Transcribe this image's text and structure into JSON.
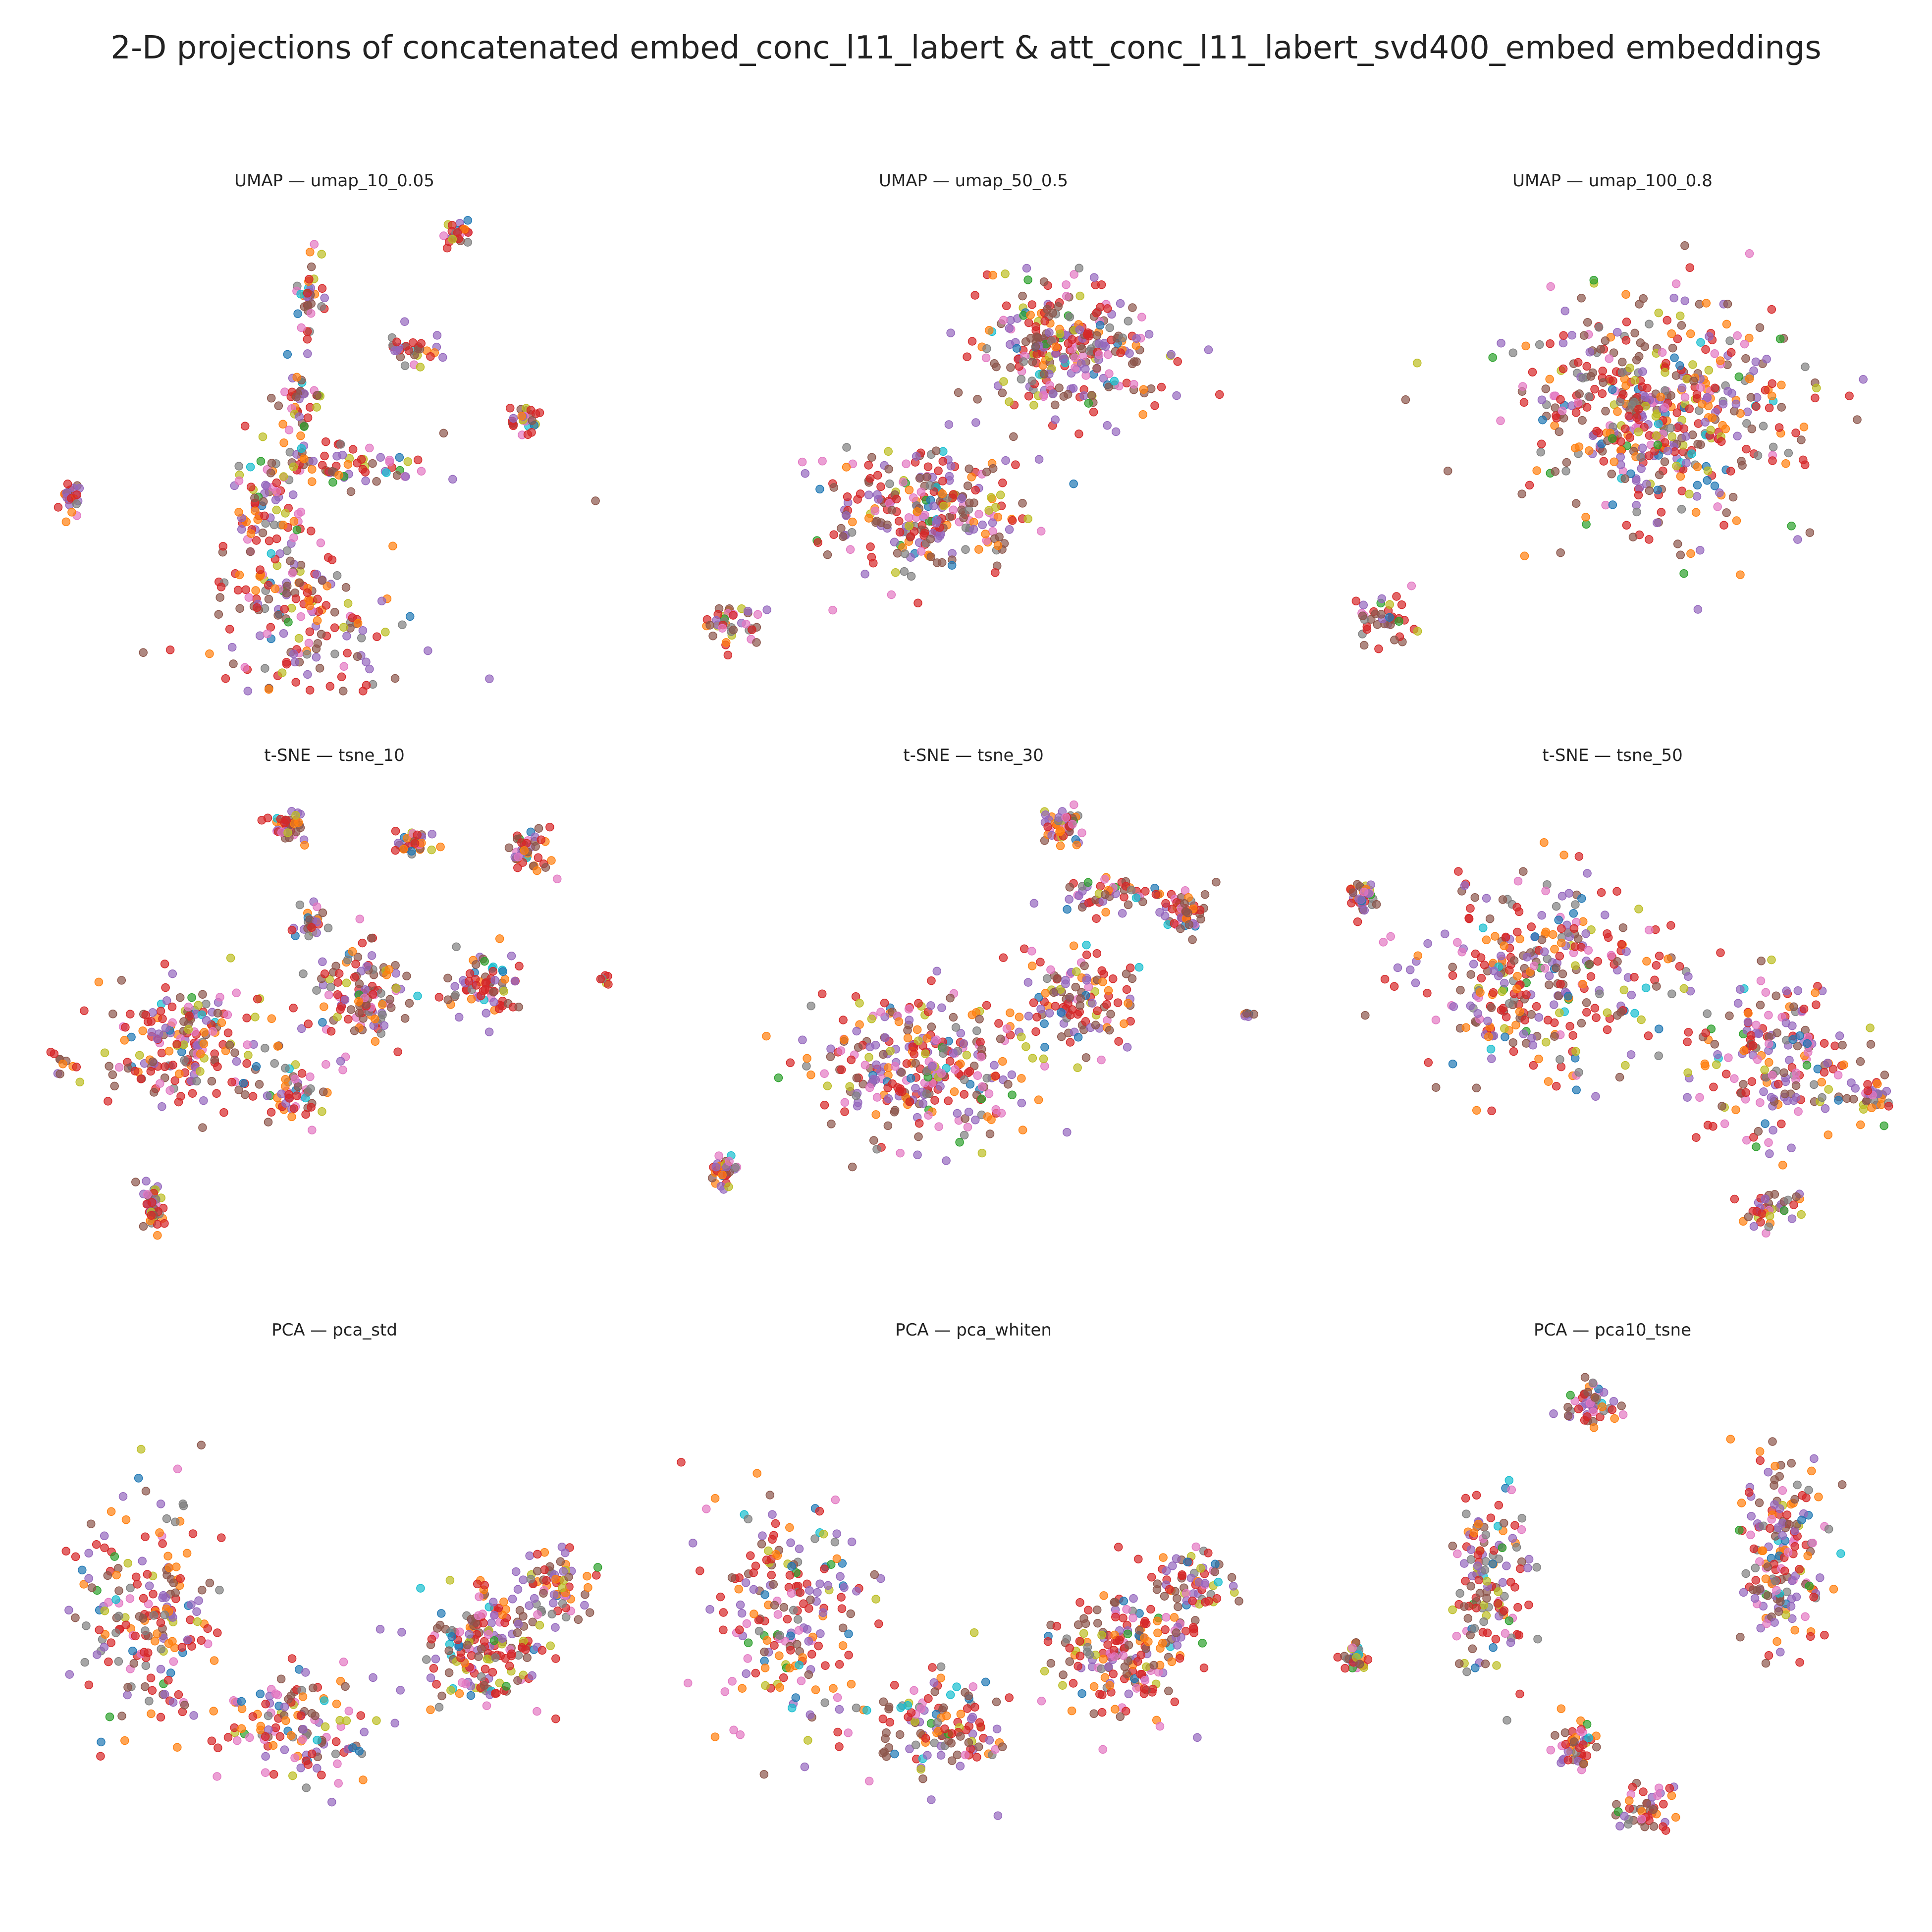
{
  "figure": {
    "title": "2-D projections of concatenated embed_conc_l11_labert & att_conc_l11_labert_svd400_embed embeddings"
  },
  "palette": [
    "#d62728",
    "#8c564b",
    "#9467bd",
    "#ff7f0e",
    "#e377c2",
    "#7f7f7f",
    "#bcbd22",
    "#1f77b4",
    "#17becf",
    "#2ca02c"
  ],
  "chart_data": [
    {
      "type": "scatter",
      "method": "UMAP",
      "param": "umap_10_0.05",
      "title": "UMAP — umap_10_0.05",
      "axes": "off",
      "grid": false,
      "clusters": [
        {
          "x": 0.46,
          "y": 0.1,
          "sx": 0.15,
          "sy": 0.1,
          "n": 90
        },
        {
          "x": 0.42,
          "y": 0.22,
          "sx": 0.09,
          "sy": 0.08,
          "n": 80
        },
        {
          "x": 0.38,
          "y": 0.38,
          "sx": 0.05,
          "sy": 0.1,
          "n": 70
        },
        {
          "x": 0.52,
          "y": 0.48,
          "sx": 0.12,
          "sy": 0.04,
          "n": 70
        },
        {
          "x": 0.44,
          "y": 0.62,
          "sx": 0.03,
          "sy": 0.08,
          "n": 40
        },
        {
          "x": 0.46,
          "y": 0.82,
          "sx": 0.02,
          "sy": 0.07,
          "n": 35
        },
        {
          "x": 0.63,
          "y": 0.72,
          "sx": 0.04,
          "sy": 0.03,
          "n": 30
        },
        {
          "x": 0.71,
          "y": 0.96,
          "sx": 0.02,
          "sy": 0.02,
          "n": 25
        },
        {
          "x": 0.83,
          "y": 0.57,
          "sx": 0.02,
          "sy": 0.03,
          "n": 30
        },
        {
          "x": 0.05,
          "y": 0.4,
          "sx": 0.02,
          "sy": 0.03,
          "n": 25
        },
        {
          "x": 0.95,
          "y": 0.4,
          "sx": 0.005,
          "sy": 0.005,
          "n": 1
        }
      ]
    },
    {
      "type": "scatter",
      "method": "UMAP",
      "param": "umap_50_0.5",
      "title": "UMAP — umap_50_0.5",
      "axes": "off",
      "grid": false,
      "clusters": [
        {
          "x": 0.66,
          "y": 0.72,
          "sx": 0.13,
          "sy": 0.12,
          "n": 280
        },
        {
          "x": 0.42,
          "y": 0.38,
          "sx": 0.14,
          "sy": 0.1,
          "n": 260
        },
        {
          "x": 0.09,
          "y": 0.14,
          "sx": 0.04,
          "sy": 0.04,
          "n": 40
        }
      ]
    },
    {
      "type": "scatter",
      "method": "UMAP",
      "param": "umap_100_0.8",
      "title": "UMAP — umap_100_0.8",
      "axes": "off",
      "grid": false,
      "clusters": [
        {
          "x": 0.58,
          "y": 0.58,
          "sx": 0.2,
          "sy": 0.19,
          "n": 520
        },
        {
          "x": 0.11,
          "y": 0.15,
          "sx": 0.05,
          "sy": 0.04,
          "n": 40
        }
      ]
    },
    {
      "type": "scatter",
      "method": "t-SNE",
      "param": "tsne_10",
      "title": "t-SNE — tsne_10",
      "axes": "off",
      "grid": false,
      "clusters": [
        {
          "x": 0.25,
          "y": 0.46,
          "sx": 0.11,
          "sy": 0.1,
          "n": 190
        },
        {
          "x": 0.55,
          "y": 0.57,
          "sx": 0.07,
          "sy": 0.08,
          "n": 120
        },
        {
          "x": 0.75,
          "y": 0.59,
          "sx": 0.05,
          "sy": 0.05,
          "n": 70
        },
        {
          "x": 0.43,
          "y": 0.36,
          "sx": 0.05,
          "sy": 0.05,
          "n": 50
        },
        {
          "x": 0.42,
          "y": 0.93,
          "sx": 0.03,
          "sy": 0.03,
          "n": 40
        },
        {
          "x": 0.63,
          "y": 0.89,
          "sx": 0.03,
          "sy": 0.02,
          "n": 35
        },
        {
          "x": 0.83,
          "y": 0.87,
          "sx": 0.03,
          "sy": 0.04,
          "n": 40
        },
        {
          "x": 0.19,
          "y": 0.12,
          "sx": 0.02,
          "sy": 0.04,
          "n": 40
        },
        {
          "x": 0.46,
          "y": 0.72,
          "sx": 0.03,
          "sy": 0.03,
          "n": 25
        },
        {
          "x": 0.04,
          "y": 0.43,
          "sx": 0.02,
          "sy": 0.02,
          "n": 10
        },
        {
          "x": 0.96,
          "y": 0.6,
          "sx": 0.01,
          "sy": 0.01,
          "n": 6
        }
      ]
    },
    {
      "type": "scatter",
      "method": "t-SNE",
      "param": "tsne_30",
      "title": "t-SNE — tsne_30",
      "axes": "off",
      "grid": false,
      "clusters": [
        {
          "x": 0.42,
          "y": 0.42,
          "sx": 0.16,
          "sy": 0.13,
          "n": 300
        },
        {
          "x": 0.68,
          "y": 0.55,
          "sx": 0.08,
          "sy": 0.09,
          "n": 110
        },
        {
          "x": 0.74,
          "y": 0.78,
          "sx": 0.07,
          "sy": 0.03,
          "n": 50
        },
        {
          "x": 0.86,
          "y": 0.74,
          "sx": 0.03,
          "sy": 0.04,
          "n": 45
        },
        {
          "x": 0.65,
          "y": 0.92,
          "sx": 0.03,
          "sy": 0.03,
          "n": 45
        },
        {
          "x": 0.07,
          "y": 0.2,
          "sx": 0.02,
          "sy": 0.03,
          "n": 35
        },
        {
          "x": 0.97,
          "y": 0.53,
          "sx": 0.01,
          "sy": 0.01,
          "n": 6
        }
      ]
    },
    {
      "type": "scatter",
      "method": "t-SNE",
      "param": "tsne_50",
      "title": "t-SNE — tsne_50",
      "axes": "off",
      "grid": false,
      "clusters": [
        {
          "x": 0.38,
          "y": 0.62,
          "sx": 0.17,
          "sy": 0.17,
          "n": 320
        },
        {
          "x": 0.78,
          "y": 0.44,
          "sx": 0.12,
          "sy": 0.14,
          "n": 190
        },
        {
          "x": 0.77,
          "y": 0.12,
          "sx": 0.04,
          "sy": 0.04,
          "n": 40
        },
        {
          "x": 0.07,
          "y": 0.78,
          "sx": 0.02,
          "sy": 0.03,
          "n": 35
        },
        {
          "x": 0.95,
          "y": 0.35,
          "sx": 0.03,
          "sy": 0.04,
          "n": 30
        }
      ]
    },
    {
      "type": "scatter",
      "method": "PCA",
      "param": "pca_std",
      "title": "PCA — pca_std",
      "axes": "off",
      "grid": false,
      "clusters": [
        {
          "x": 0.18,
          "y": 0.48,
          "sx": 0.1,
          "sy": 0.2,
          "n": 190
        },
        {
          "x": 0.44,
          "y": 0.24,
          "sx": 0.12,
          "sy": 0.1,
          "n": 130
        },
        {
          "x": 0.76,
          "y": 0.4,
          "sx": 0.1,
          "sy": 0.11,
          "n": 190
        },
        {
          "x": 0.88,
          "y": 0.54,
          "sx": 0.05,
          "sy": 0.06,
          "n": 60
        }
      ]
    },
    {
      "type": "scatter",
      "method": "PCA",
      "param": "pca_whiten",
      "title": "PCA — pca_whiten",
      "axes": "off",
      "grid": false,
      "clusters": [
        {
          "x": 0.18,
          "y": 0.48,
          "sx": 0.1,
          "sy": 0.2,
          "n": 190
        },
        {
          "x": 0.44,
          "y": 0.24,
          "sx": 0.12,
          "sy": 0.1,
          "n": 130
        },
        {
          "x": 0.76,
          "y": 0.4,
          "sx": 0.1,
          "sy": 0.11,
          "n": 190
        },
        {
          "x": 0.88,
          "y": 0.54,
          "sx": 0.05,
          "sy": 0.06,
          "n": 60
        }
      ]
    },
    {
      "type": "scatter",
      "method": "PCA",
      "param": "pca10_tsne",
      "title": "PCA — pca10_tsne",
      "axes": "off",
      "grid": false,
      "clusters": [
        {
          "x": 0.46,
          "y": 0.91,
          "sx": 0.04,
          "sy": 0.04,
          "n": 50
        },
        {
          "x": 0.29,
          "y": 0.55,
          "sx": 0.05,
          "sy": 0.17,
          "n": 130
        },
        {
          "x": 0.79,
          "y": 0.6,
          "sx": 0.06,
          "sy": 0.18,
          "n": 170
        },
        {
          "x": 0.44,
          "y": 0.2,
          "sx": 0.03,
          "sy": 0.05,
          "n": 45
        },
        {
          "x": 0.55,
          "y": 0.06,
          "sx": 0.04,
          "sy": 0.04,
          "n": 45
        },
        {
          "x": 0.06,
          "y": 0.38,
          "sx": 0.02,
          "sy": 0.03,
          "n": 30
        }
      ]
    }
  ]
}
